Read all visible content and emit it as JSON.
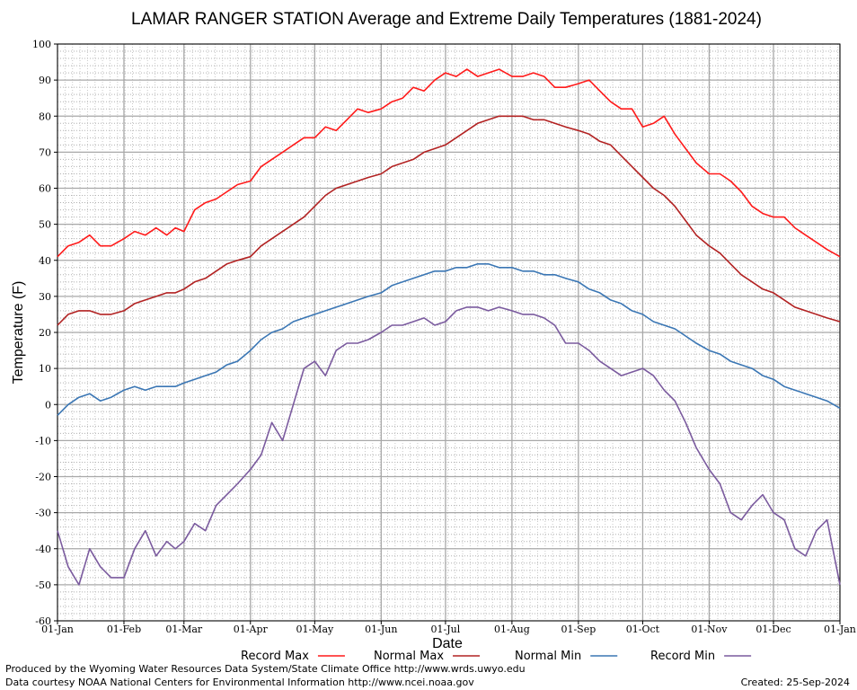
{
  "chart_data": {
    "type": "line",
    "title": "LAMAR RANGER STATION Average and Extreme Daily Temperatures (1881-2024)",
    "xlabel": "Date",
    "ylabel": "Temperature (F)",
    "ylim": [
      -60,
      100
    ],
    "yticks": [
      100,
      90,
      80,
      70,
      60,
      50,
      40,
      30,
      20,
      10,
      0,
      -10,
      -20,
      -30,
      -40,
      -50,
      -60
    ],
    "xticks": [
      "01-Jan",
      "01-Feb",
      "01-Mar",
      "01-Apr",
      "01-May",
      "01-Jun",
      "01-Jul",
      "01-Aug",
      "01-Sep",
      "01-Oct",
      "01-Nov",
      "01-Dec",
      "01-Jan"
    ],
    "xtick_days": [
      0,
      31,
      59,
      90,
      120,
      151,
      181,
      212,
      243,
      273,
      304,
      334,
      365
    ],
    "grid": true,
    "legend_position": "bottom",
    "series": [
      {
        "name": "Record Max",
        "color": "#ff1a1a",
        "x": [
          0,
          5,
          10,
          15,
          20,
          25,
          31,
          36,
          41,
          46,
          51,
          55,
          59,
          64,
          69,
          74,
          79,
          84,
          90,
          95,
          100,
          105,
          110,
          115,
          120,
          125,
          130,
          135,
          140,
          145,
          151,
          156,
          161,
          166,
          171,
          176,
          181,
          186,
          191,
          196,
          201,
          206,
          212,
          217,
          222,
          227,
          232,
          237,
          243,
          248,
          253,
          258,
          263,
          268,
          273,
          278,
          283,
          288,
          293,
          298,
          304,
          309,
          314,
          319,
          324,
          329,
          334,
          339,
          344,
          349,
          354,
          359,
          365
        ],
        "y": [
          41,
          44,
          45,
          47,
          44,
          44,
          46,
          48,
          47,
          49,
          47,
          49,
          48,
          54,
          56,
          57,
          59,
          61,
          62,
          66,
          68,
          70,
          72,
          74,
          74,
          77,
          76,
          79,
          82,
          81,
          82,
          84,
          85,
          88,
          87,
          90,
          92,
          91,
          93,
          91,
          92,
          93,
          91,
          91,
          92,
          91,
          88,
          88,
          89,
          90,
          87,
          84,
          82,
          82,
          77,
          78,
          80,
          75,
          71,
          67,
          64,
          64,
          62,
          59,
          55,
          53,
          52,
          52,
          49,
          47,
          45,
          43,
          41
        ]
      },
      {
        "name": "Normal Max",
        "color": "#b22222",
        "x": [
          0,
          5,
          10,
          15,
          20,
          25,
          31,
          36,
          41,
          46,
          51,
          55,
          59,
          64,
          69,
          74,
          79,
          84,
          90,
          95,
          100,
          105,
          110,
          115,
          120,
          125,
          130,
          135,
          140,
          145,
          151,
          156,
          161,
          166,
          171,
          176,
          181,
          186,
          191,
          196,
          201,
          206,
          212,
          217,
          222,
          227,
          232,
          237,
          243,
          248,
          253,
          258,
          263,
          268,
          273,
          278,
          283,
          288,
          293,
          298,
          304,
          309,
          314,
          319,
          324,
          329,
          334,
          339,
          344,
          349,
          354,
          359,
          365
        ],
        "y": [
          22,
          25,
          26,
          26,
          25,
          25,
          26,
          28,
          29,
          30,
          31,
          31,
          32,
          34,
          35,
          37,
          39,
          40,
          41,
          44,
          46,
          48,
          50,
          52,
          55,
          58,
          60,
          61,
          62,
          63,
          64,
          66,
          67,
          68,
          70,
          71,
          72,
          74,
          76,
          78,
          79,
          80,
          80,
          80,
          79,
          79,
          78,
          77,
          76,
          75,
          73,
          72,
          69,
          66,
          63,
          60,
          58,
          55,
          51,
          47,
          44,
          42,
          39,
          36,
          34,
          32,
          31,
          29,
          27,
          26,
          25,
          24,
          23
        ]
      },
      {
        "name": "Normal Min",
        "color": "#3a76b4",
        "x": [
          0,
          5,
          10,
          15,
          20,
          25,
          31,
          36,
          41,
          46,
          51,
          55,
          59,
          64,
          69,
          74,
          79,
          84,
          90,
          95,
          100,
          105,
          110,
          115,
          120,
          125,
          130,
          135,
          140,
          145,
          151,
          156,
          161,
          166,
          171,
          176,
          181,
          186,
          191,
          196,
          201,
          206,
          212,
          217,
          222,
          227,
          232,
          237,
          243,
          248,
          253,
          258,
          263,
          268,
          273,
          278,
          283,
          288,
          293,
          298,
          304,
          309,
          314,
          319,
          324,
          329,
          334,
          339,
          344,
          349,
          354,
          359,
          365
        ],
        "y": [
          -3,
          0,
          2,
          3,
          1,
          2,
          4,
          5,
          4,
          5,
          5,
          5,
          6,
          7,
          8,
          9,
          11,
          12,
          15,
          18,
          20,
          21,
          23,
          24,
          25,
          26,
          27,
          28,
          29,
          30,
          31,
          33,
          34,
          35,
          36,
          37,
          37,
          38,
          38,
          39,
          39,
          38,
          38,
          37,
          37,
          36,
          36,
          35,
          34,
          32,
          31,
          29,
          28,
          26,
          25,
          23,
          22,
          21,
          19,
          17,
          15,
          14,
          12,
          11,
          10,
          8,
          7,
          5,
          4,
          3,
          2,
          1,
          -1
        ]
      },
      {
        "name": "Record Min",
        "color": "#7a5a9e",
        "x": [
          0,
          5,
          10,
          15,
          20,
          25,
          31,
          36,
          41,
          46,
          51,
          55,
          59,
          64,
          69,
          74,
          79,
          84,
          90,
          95,
          100,
          105,
          110,
          115,
          120,
          125,
          130,
          135,
          140,
          145,
          151,
          156,
          161,
          166,
          171,
          176,
          181,
          186,
          191,
          196,
          201,
          206,
          212,
          217,
          222,
          227,
          232,
          237,
          243,
          248,
          253,
          258,
          263,
          268,
          273,
          278,
          283,
          288,
          293,
          298,
          304,
          309,
          314,
          319,
          324,
          329,
          334,
          339,
          344,
          349,
          354,
          359,
          365
        ],
        "y": [
          -35,
          -45,
          -50,
          -40,
          -45,
          -48,
          -48,
          -40,
          -35,
          -42,
          -38,
          -40,
          -38,
          -33,
          -35,
          -28,
          -25,
          -22,
          -18,
          -14,
          -5,
          -10,
          0,
          10,
          12,
          8,
          15,
          17,
          17,
          18,
          20,
          22,
          22,
          23,
          24,
          22,
          23,
          26,
          27,
          27,
          26,
          27,
          26,
          25,
          25,
          24,
          22,
          17,
          17,
          15,
          12,
          10,
          8,
          9,
          10,
          8,
          4,
          1,
          -5,
          -12,
          -18,
          -22,
          -30,
          -32,
          -28,
          -25,
          -30,
          -32,
          -40,
          -42,
          -35,
          -32,
          -50
        ]
      }
    ]
  },
  "legend": {
    "entries": [
      "Record Max",
      "Normal Max",
      "Normal Min",
      "Record Min"
    ]
  },
  "footer": {
    "line1": "Produced by the Wyoming Water Resources Data System/State Climate Office http://www.wrds.uwyo.edu",
    "line2": "Data courtesy NOAA National Centers for Environmental Information http://www.ncei.noaa.gov",
    "created": "Created:  25-Sep-2024"
  }
}
